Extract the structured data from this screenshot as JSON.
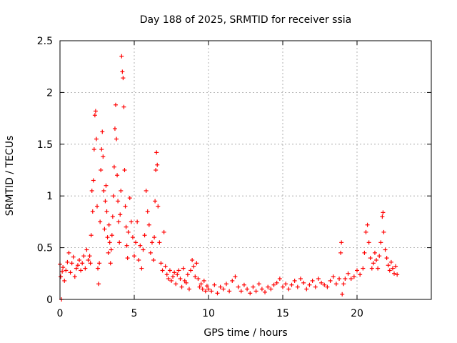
{
  "chart_data": {
    "type": "scatter",
    "title": "Day 188 of 2025, SRMTID for receiver ssia",
    "xlabel": "GPS time / hours",
    "ylabel": "SRMTID / TECUs",
    "xlim": [
      0,
      25
    ],
    "ylim": [
      0,
      2.5
    ],
    "xticks": [
      0,
      5,
      10,
      15,
      20
    ],
    "yticks": [
      0,
      0.5,
      1,
      1.5,
      2,
      2.5
    ],
    "xtick_labels": [
      "0",
      "5",
      "10",
      "15",
      "20"
    ],
    "ytick_labels": [
      "0",
      "0.5",
      "1",
      "1.5",
      "2",
      "2.5"
    ],
    "grid": true,
    "marker": "+",
    "series": [
      {
        "name": "SRMTID",
        "color": "#ff0000",
        "points": [
          [
            0.0,
            0.34
          ],
          [
            0.05,
            0.22
          ],
          [
            0.1,
            0.0
          ],
          [
            0.15,
            0.27
          ],
          [
            0.2,
            0.31
          ],
          [
            0.3,
            0.18
          ],
          [
            0.4,
            0.28
          ],
          [
            0.5,
            0.36
          ],
          [
            0.6,
            0.45
          ],
          [
            0.7,
            0.26
          ],
          [
            0.8,
            0.35
          ],
          [
            0.9,
            0.41
          ],
          [
            1.0,
            0.22
          ],
          [
            1.1,
            0.3
          ],
          [
            1.2,
            0.33
          ],
          [
            1.3,
            0.38
          ],
          [
            1.4,
            0.28
          ],
          [
            1.5,
            0.35
          ],
          [
            1.6,
            0.42
          ],
          [
            1.7,
            0.3
          ],
          [
            1.8,
            0.48
          ],
          [
            1.9,
            0.38
          ],
          [
            2.0,
            0.42
          ],
          [
            2.05,
            0.35
          ],
          [
            2.1,
            0.62
          ],
          [
            2.15,
            1.05
          ],
          [
            2.2,
            0.85
          ],
          [
            2.25,
            1.15
          ],
          [
            2.3,
            1.45
          ],
          [
            2.35,
            1.78
          ],
          [
            2.4,
            1.82
          ],
          [
            2.45,
            1.55
          ],
          [
            2.5,
            0.9
          ],
          [
            2.55,
            0.3
          ],
          [
            2.6,
            0.15
          ],
          [
            2.65,
            0.35
          ],
          [
            2.7,
            0.75
          ],
          [
            2.75,
            1.25
          ],
          [
            2.8,
            1.45
          ],
          [
            2.85,
            1.62
          ],
          [
            2.9,
            1.38
          ],
          [
            2.95,
            1.05
          ],
          [
            3.0,
            0.68
          ],
          [
            3.05,
            0.95
          ],
          [
            3.1,
            1.1
          ],
          [
            3.15,
            0.85
          ],
          [
            3.2,
            0.6
          ],
          [
            3.25,
            0.45
          ],
          [
            3.3,
            0.72
          ],
          [
            3.35,
            0.55
          ],
          [
            3.4,
            0.35
          ],
          [
            3.45,
            0.48
          ],
          [
            3.5,
            0.62
          ],
          [
            3.55,
            0.8
          ],
          [
            3.6,
            1.0
          ],
          [
            3.65,
            1.28
          ],
          [
            3.7,
            1.65
          ],
          [
            3.75,
            1.88
          ],
          [
            3.8,
            1.55
          ],
          [
            3.85,
            1.2
          ],
          [
            3.9,
            0.95
          ],
          [
            3.95,
            0.75
          ],
          [
            4.0,
            0.55
          ],
          [
            4.05,
            0.82
          ],
          [
            4.1,
            1.05
          ],
          [
            4.15,
            2.35
          ],
          [
            4.2,
            2.2
          ],
          [
            4.25,
            2.14
          ],
          [
            4.3,
            1.86
          ],
          [
            4.35,
            1.25
          ],
          [
            4.4,
            0.9
          ],
          [
            4.45,
            0.7
          ],
          [
            4.5,
            0.52
          ],
          [
            4.55,
            0.4
          ],
          [
            4.6,
            0.65
          ],
          [
            4.7,
            0.98
          ],
          [
            4.8,
            0.75
          ],
          [
            4.9,
            0.6
          ],
          [
            5.0,
            0.42
          ],
          [
            5.1,
            0.55
          ],
          [
            5.2,
            0.75
          ],
          [
            5.3,
            0.38
          ],
          [
            5.4,
            0.52
          ],
          [
            5.5,
            0.3
          ],
          [
            5.6,
            0.48
          ],
          [
            5.7,
            0.62
          ],
          [
            5.8,
            1.05
          ],
          [
            5.9,
            0.85
          ],
          [
            6.0,
            0.72
          ],
          [
            6.1,
            0.45
          ],
          [
            6.2,
            0.55
          ],
          [
            6.3,
            0.38
          ],
          [
            6.35,
            0.6
          ],
          [
            6.4,
            0.95
          ],
          [
            6.45,
            1.25
          ],
          [
            6.5,
            1.42
          ],
          [
            6.55,
            1.3
          ],
          [
            6.6,
            0.9
          ],
          [
            6.7,
            0.55
          ],
          [
            6.8,
            0.35
          ],
          [
            6.9,
            0.28
          ],
          [
            7.0,
            0.65
          ],
          [
            7.1,
            0.32
          ],
          [
            7.2,
            0.24
          ],
          [
            7.3,
            0.2
          ],
          [
            7.4,
            0.28
          ],
          [
            7.5,
            0.18
          ],
          [
            7.6,
            0.22
          ],
          [
            7.7,
            0.26
          ],
          [
            7.8,
            0.15
          ],
          [
            7.9,
            0.24
          ],
          [
            8.0,
            0.28
          ],
          [
            8.1,
            0.2
          ],
          [
            8.2,
            0.12
          ],
          [
            8.3,
            0.3
          ],
          [
            8.4,
            0.18
          ],
          [
            8.5,
            0.16
          ],
          [
            8.6,
            0.24
          ],
          [
            8.7,
            0.1
          ],
          [
            8.8,
            0.28
          ],
          [
            8.9,
            0.38
          ],
          [
            9.0,
            0.32
          ],
          [
            9.1,
            0.22
          ],
          [
            9.2,
            0.35
          ],
          [
            9.3,
            0.2
          ],
          [
            9.4,
            0.12
          ],
          [
            9.5,
            0.15
          ],
          [
            9.6,
            0.1
          ],
          [
            9.7,
            0.18
          ],
          [
            9.8,
            0.08
          ],
          [
            9.9,
            0.13
          ],
          [
            10.0,
            0.1
          ],
          [
            10.2,
            0.08
          ],
          [
            10.4,
            0.14
          ],
          [
            10.6,
            0.06
          ],
          [
            10.8,
            0.12
          ],
          [
            11.0,
            0.1
          ],
          [
            11.2,
            0.15
          ],
          [
            11.4,
            0.08
          ],
          [
            11.6,
            0.18
          ],
          [
            11.8,
            0.22
          ],
          [
            12.0,
            0.12
          ],
          [
            12.2,
            0.08
          ],
          [
            12.4,
            0.14
          ],
          [
            12.6,
            0.1
          ],
          [
            12.8,
            0.06
          ],
          [
            13.0,
            0.12
          ],
          [
            13.2,
            0.08
          ],
          [
            13.4,
            0.15
          ],
          [
            13.6,
            0.1
          ],
          [
            13.8,
            0.07
          ],
          [
            14.0,
            0.12
          ],
          [
            14.2,
            0.1
          ],
          [
            14.4,
            0.14
          ],
          [
            14.6,
            0.16
          ],
          [
            14.8,
            0.2
          ],
          [
            15.0,
            0.12
          ],
          [
            15.2,
            0.15
          ],
          [
            15.4,
            0.1
          ],
          [
            15.6,
            0.14
          ],
          [
            15.8,
            0.18
          ],
          [
            16.0,
            0.12
          ],
          [
            16.2,
            0.2
          ],
          [
            16.4,
            0.16
          ],
          [
            16.6,
            0.1
          ],
          [
            16.8,
            0.14
          ],
          [
            17.0,
            0.18
          ],
          [
            17.2,
            0.12
          ],
          [
            17.4,
            0.2
          ],
          [
            17.6,
            0.16
          ],
          [
            17.8,
            0.14
          ],
          [
            18.0,
            0.12
          ],
          [
            18.2,
            0.18
          ],
          [
            18.4,
            0.22
          ],
          [
            18.6,
            0.15
          ],
          [
            18.8,
            0.2
          ],
          [
            18.9,
            0.45
          ],
          [
            18.95,
            0.55
          ],
          [
            19.0,
            0.05
          ],
          [
            19.1,
            0.15
          ],
          [
            19.2,
            0.2
          ],
          [
            19.4,
            0.25
          ],
          [
            19.6,
            0.2
          ],
          [
            19.8,
            0.22
          ],
          [
            20.0,
            0.28
          ],
          [
            20.2,
            0.24
          ],
          [
            20.4,
            0.3
          ],
          [
            20.5,
            0.45
          ],
          [
            20.6,
            0.65
          ],
          [
            20.7,
            0.72
          ],
          [
            20.8,
            0.55
          ],
          [
            20.9,
            0.4
          ],
          [
            21.0,
            0.3
          ],
          [
            21.1,
            0.35
          ],
          [
            21.2,
            0.45
          ],
          [
            21.3,
            0.38
          ],
          [
            21.4,
            0.3
          ],
          [
            21.5,
            0.42
          ],
          [
            21.6,
            0.55
          ],
          [
            21.7,
            0.8
          ],
          [
            21.75,
            0.84
          ],
          [
            21.8,
            0.65
          ],
          [
            21.9,
            0.48
          ],
          [
            22.0,
            0.4
          ],
          [
            22.1,
            0.33
          ],
          [
            22.2,
            0.28
          ],
          [
            22.3,
            0.36
          ],
          [
            22.4,
            0.3
          ],
          [
            22.5,
            0.25
          ],
          [
            22.6,
            0.32
          ],
          [
            22.7,
            0.24
          ]
        ]
      }
    ]
  }
}
